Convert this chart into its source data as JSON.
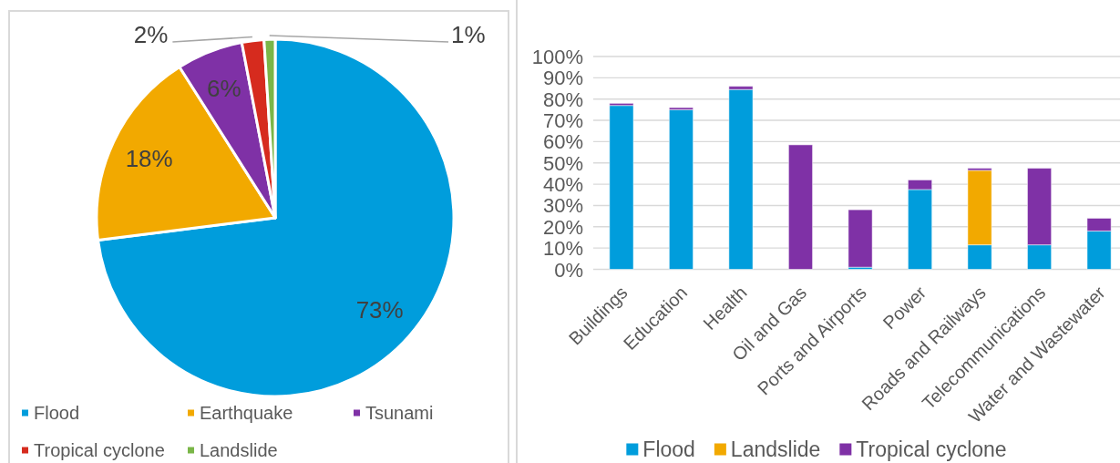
{
  "chart_data": [
    {
      "type": "pie",
      "categories": [
        "Flood",
        "Earthquake",
        "Tsunami",
        "Tropical cyclone",
        "Landslide"
      ],
      "values": [
        73,
        18,
        6,
        2,
        1
      ],
      "colors": [
        "#009ddc",
        "#f2a900",
        "#7f31a6",
        "#d62b1e",
        "#7ab648"
      ],
      "value_labels": [
        "73%",
        "18%",
        "6%",
        "2%",
        "1%"
      ],
      "legend": "bottom"
    },
    {
      "type": "bar",
      "stacked": true,
      "categories": [
        "Buildings",
        "Education",
        "Health",
        "Oil and Gas",
        "Ports and Airports",
        "Power",
        "Roads and Railways",
        "Telecommunications",
        "Water and Wastewater"
      ],
      "series": [
        {
          "name": "Flood",
          "color": "#009ddc",
          "values": [
            77,
            75,
            84.5,
            null,
            1,
            37.5,
            11.5,
            11.5,
            18
          ]
        },
        {
          "name": "Landslide",
          "color": "#f2a900",
          "values": [
            null,
            null,
            null,
            null,
            null,
            null,
            35,
            null,
            null
          ]
        },
        {
          "name": "Tropical cyclone",
          "color": "#7f31a6",
          "values": [
            1,
            1,
            1.5,
            58.5,
            27,
            4.5,
            1,
            36,
            6
          ]
        }
      ],
      "ylim": [
        0,
        100
      ],
      "yticks": [
        {
          "value": 0,
          "label": "0%"
        },
        {
          "value": 10,
          "label": "10%"
        },
        {
          "value": 20,
          "label": "20%"
        },
        {
          "value": 30,
          "label": "30%"
        },
        {
          "value": 40,
          "label": "40%"
        },
        {
          "value": 50,
          "label": "50%"
        },
        {
          "value": 60,
          "label": "60%"
        },
        {
          "value": 70,
          "label": "70%"
        },
        {
          "value": 80,
          "label": "80%"
        },
        {
          "value": 90,
          "label": "90%"
        },
        {
          "value": 100,
          "label": "100%"
        }
      ],
      "grid": "y",
      "legend": "bottom"
    }
  ]
}
